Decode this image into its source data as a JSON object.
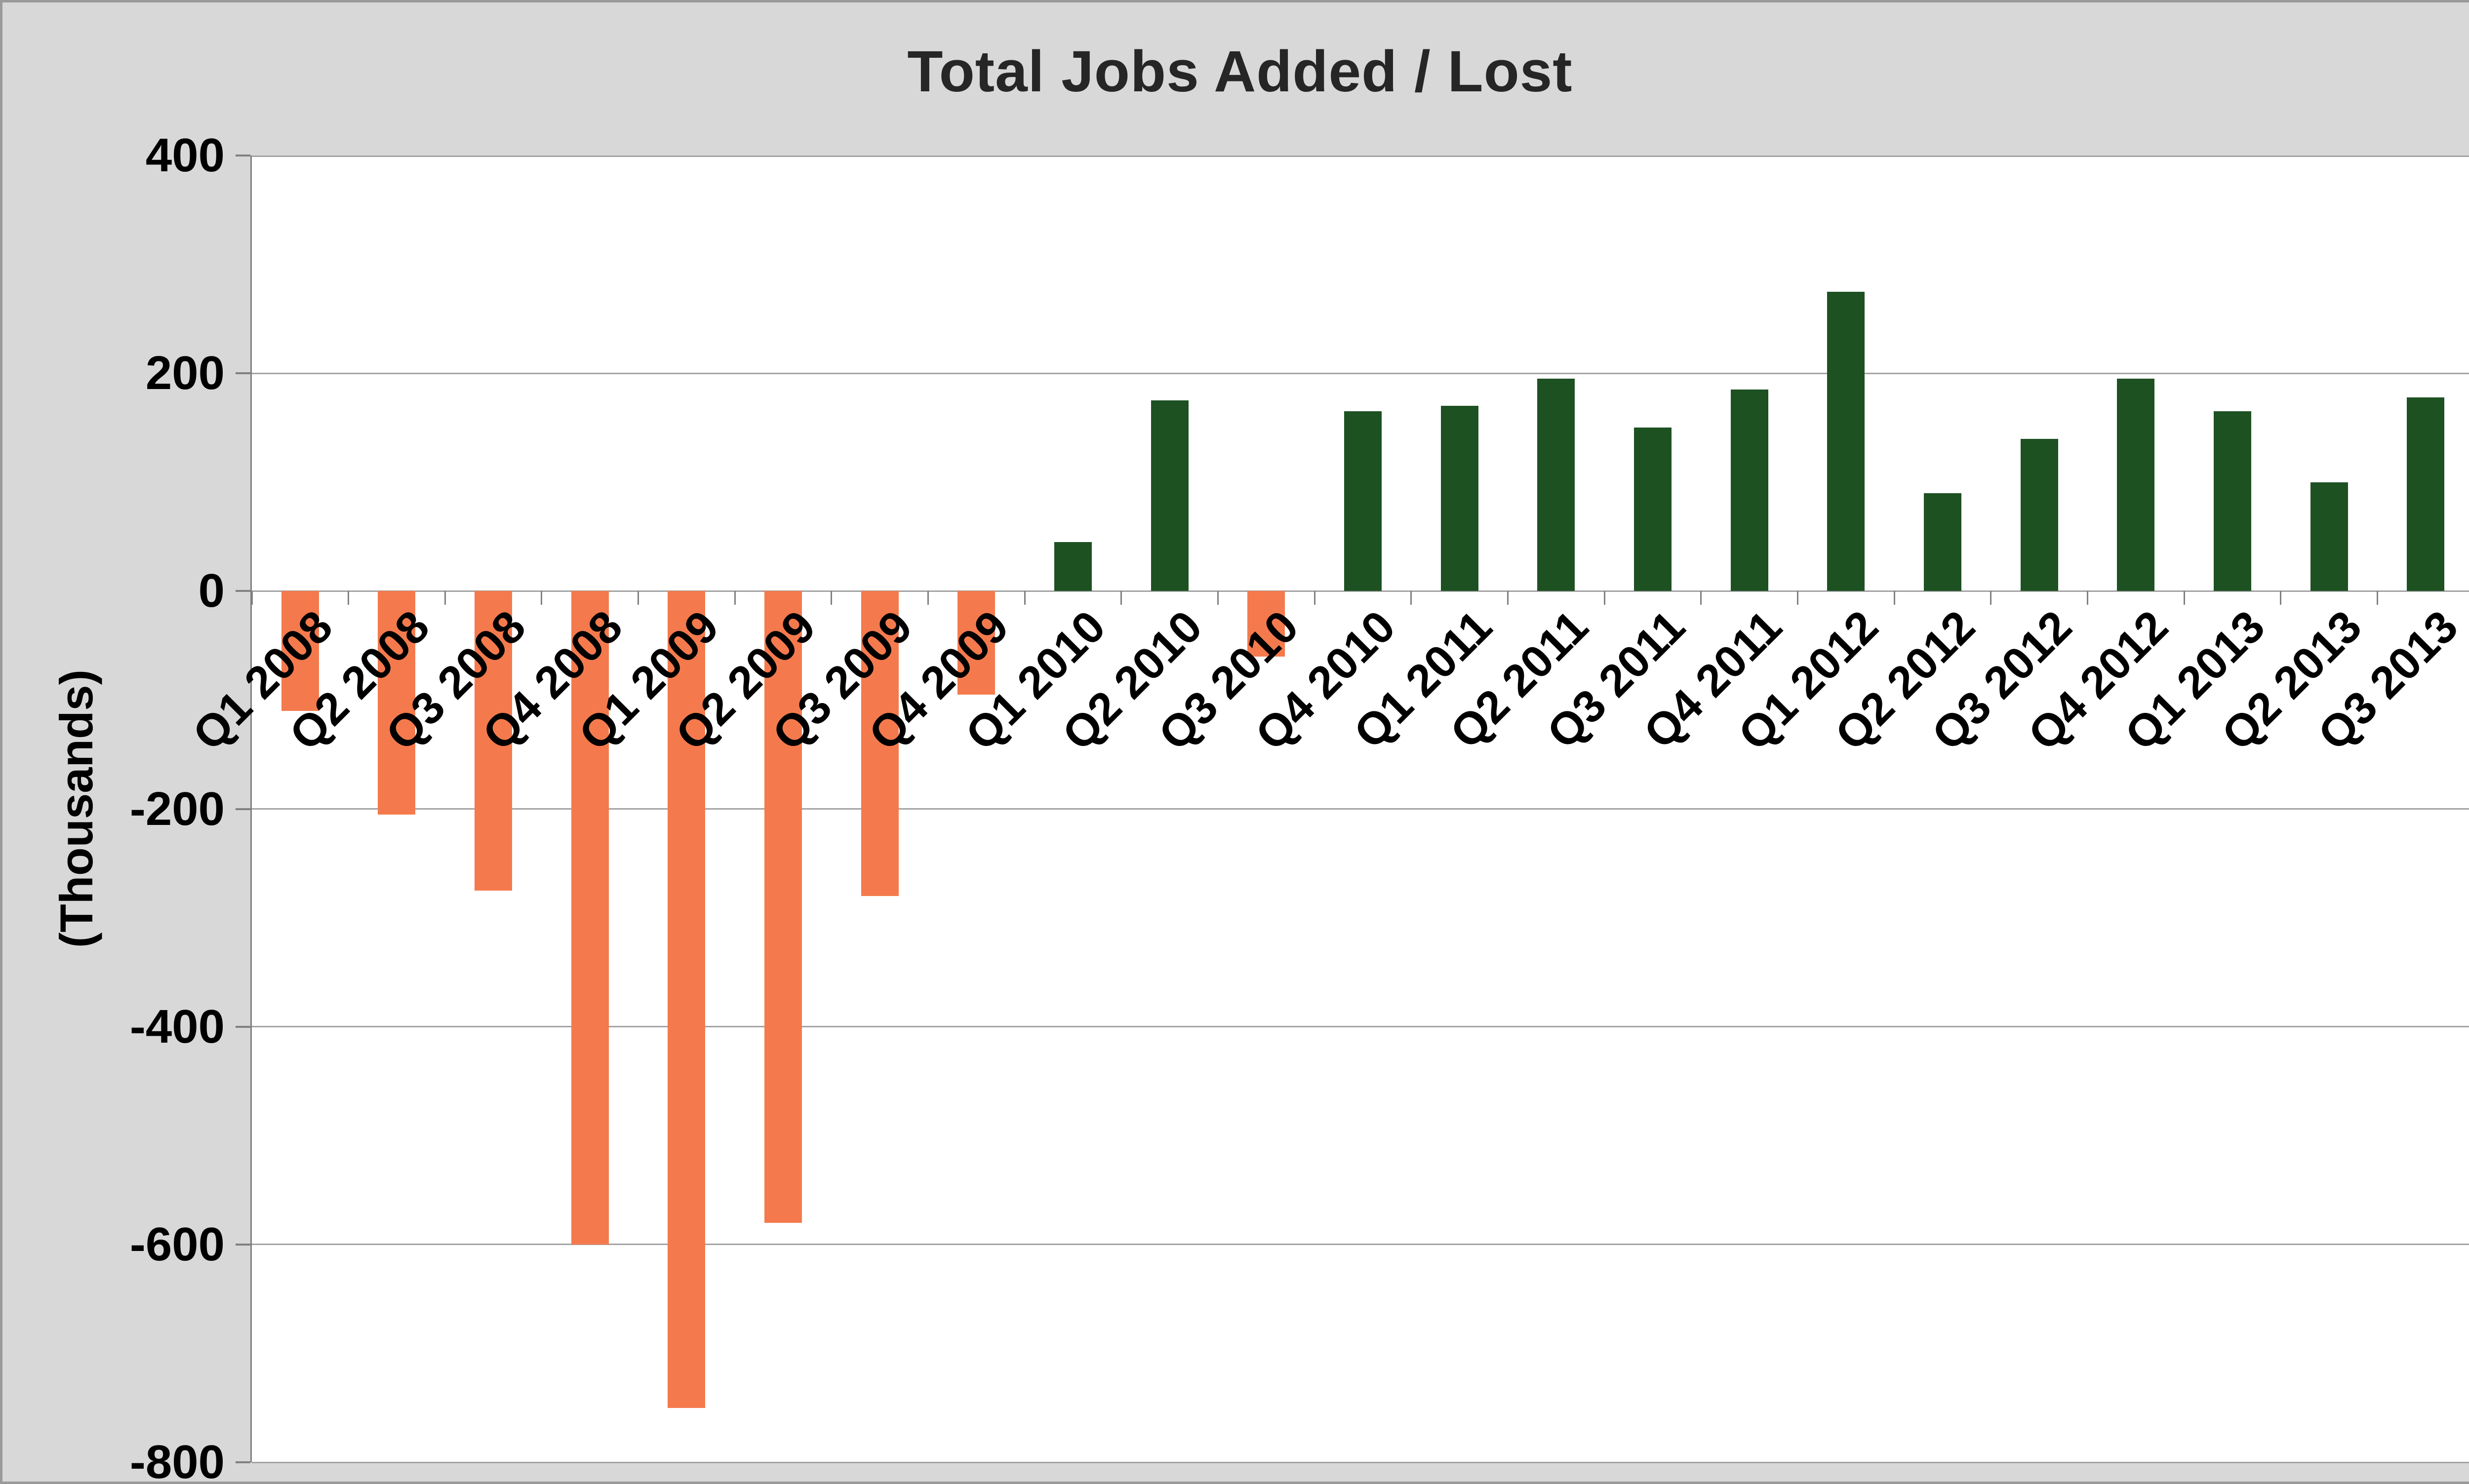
{
  "chart_data": {
    "type": "bar",
    "title": "Total Jobs Added / Lost",
    "xlabel": "",
    "ylabel": "(Thousands)",
    "ylim": [
      -800,
      400
    ],
    "yticks": [
      400,
      200,
      0,
      -200,
      -400,
      -600,
      -800
    ],
    "grid": true,
    "legend": false,
    "categories": [
      "Q1 2008",
      "Q2 2008",
      "Q3 2008",
      "Q4 2008",
      "Q1 2009",
      "Q2 2009",
      "Q3 2009",
      "Q4 2009",
      "Q1 2010",
      "Q2 2010",
      "Q3 2010",
      "Q4 2010",
      "Q1 2011",
      "Q2 2011",
      "Q3 2011",
      "Q4 2011",
      "Q1 2012",
      "Q2 2012",
      "Q3 2012",
      "Q4 2012",
      "Q1 2013",
      "Q2 2013",
      "Q3 2013"
    ],
    "values": [
      -110,
      -205,
      -275,
      -600,
      -750,
      -580,
      -280,
      -95,
      45,
      175,
      -60,
      165,
      170,
      195,
      150,
      185,
      275,
      90,
      140,
      195,
      165,
      100,
      178
    ],
    "positive_color": "#1D5122",
    "negative_color": "#F47A4D",
    "title_color": "#262626",
    "axis_text_color": "#000000",
    "gridline_color": "#A3A3A3",
    "axis_line_color": "#808080",
    "plot_background": "#FFFFFF",
    "chart_background": "#D8D8D8"
  }
}
